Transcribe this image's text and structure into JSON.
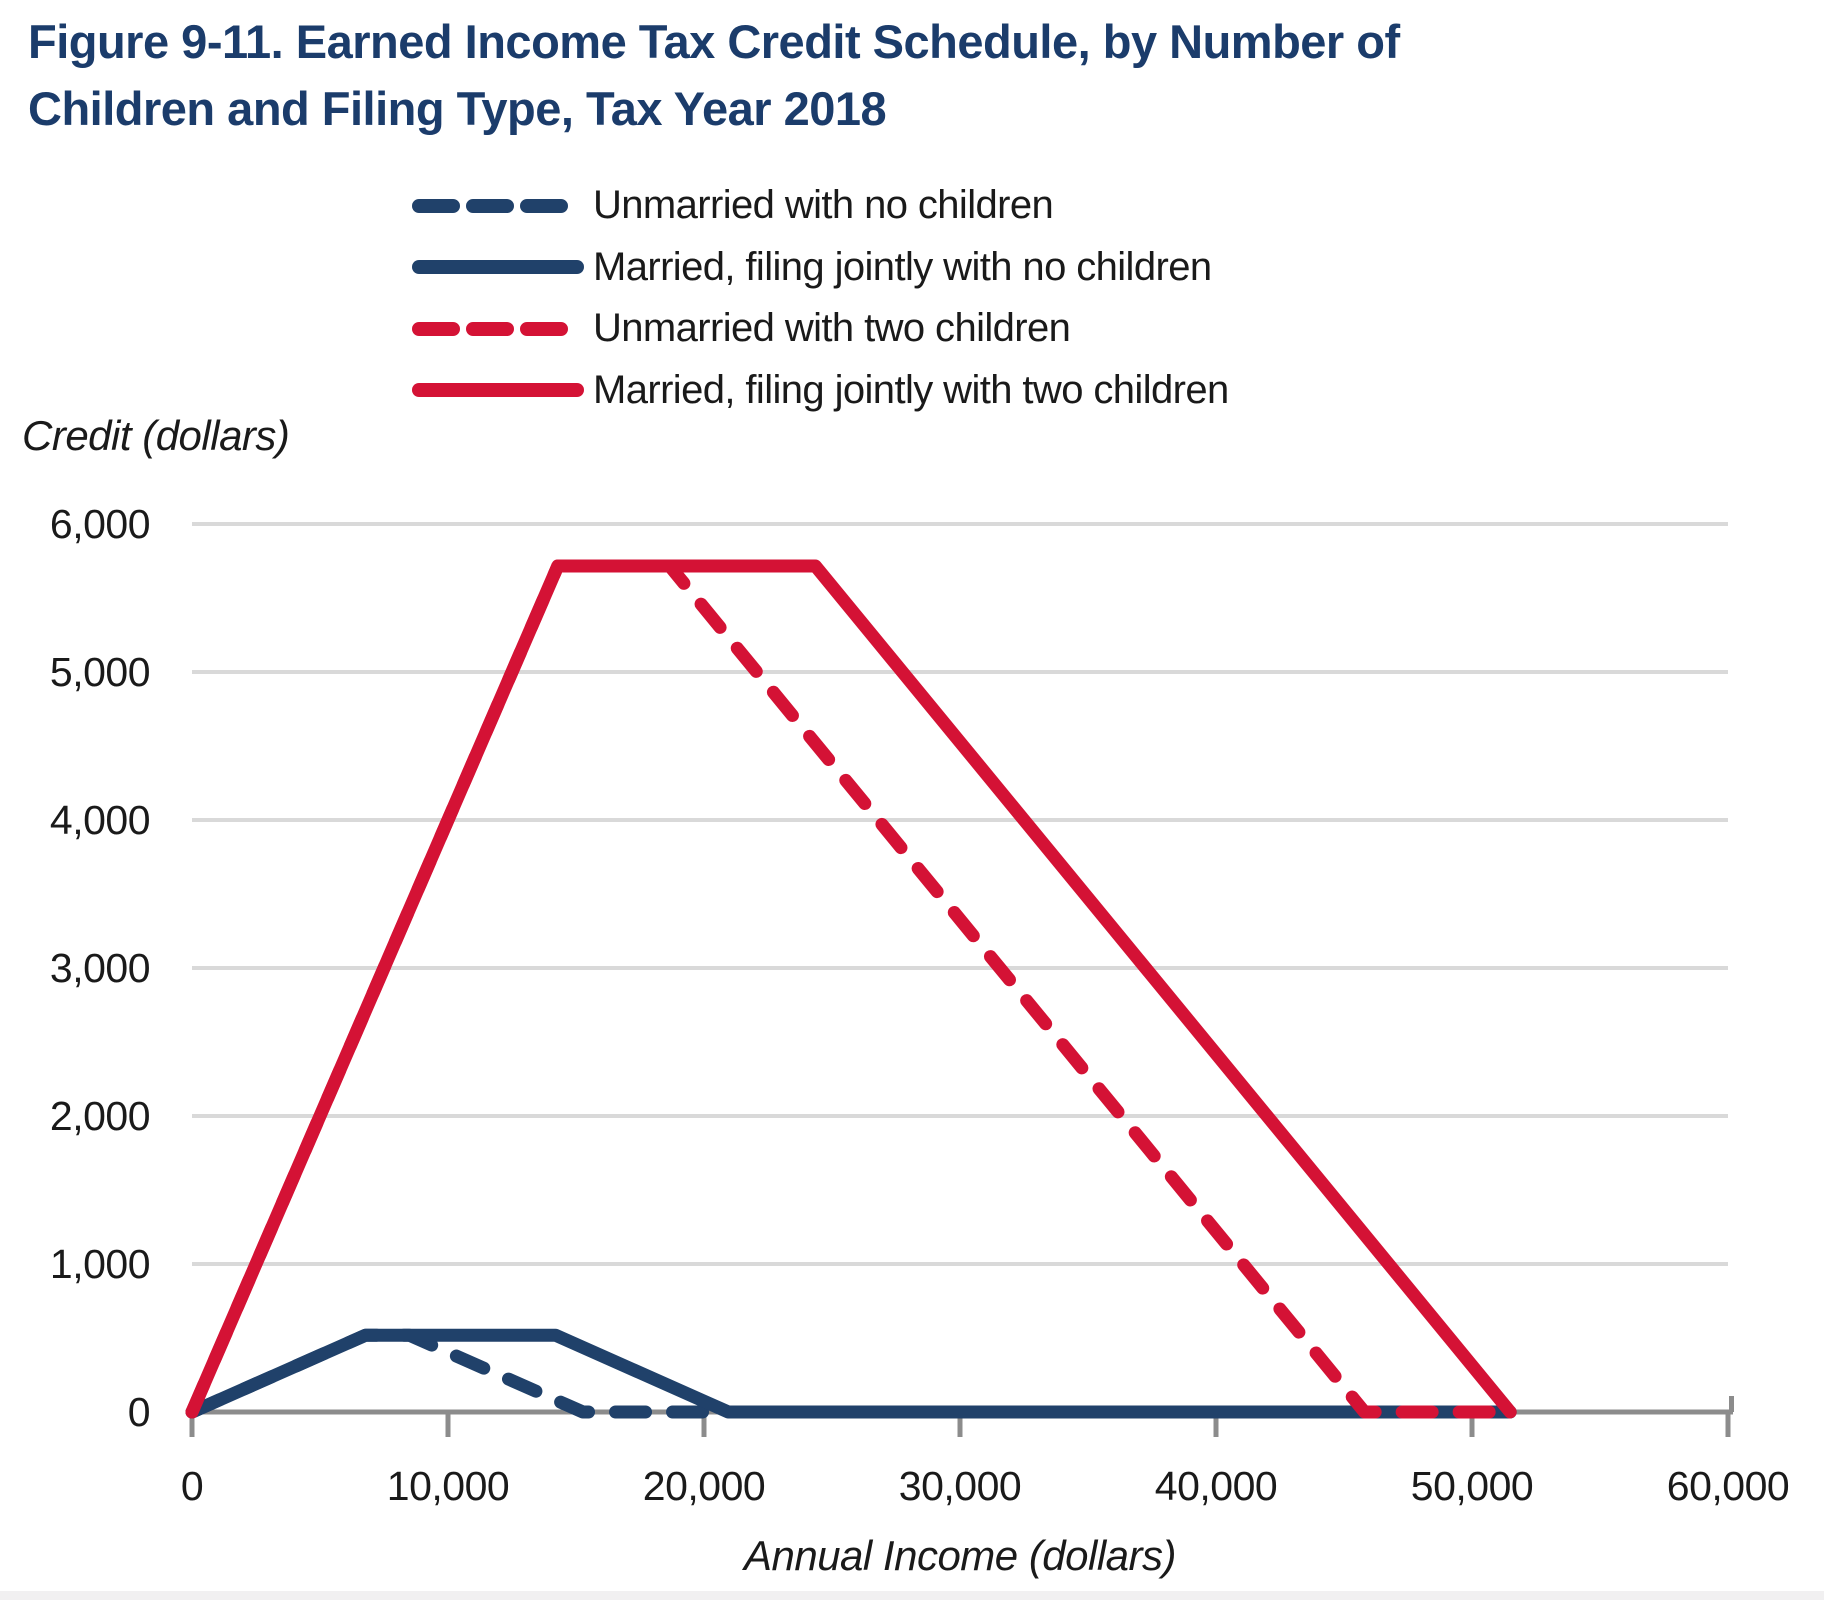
{
  "title": "Figure 9-11. Earned Income Tax Credit Schedule, by Number of Children and Filing Type, Tax Year 2018",
  "colors": {
    "title_navy": "#1b3c6b",
    "navy_line": "#20416a",
    "red_line": "#d41235",
    "text": "#1a1a1a",
    "gridline": "#d9d9d9",
    "axis": "#8c8c8c"
  },
  "legend": {
    "items": [
      {
        "label": "Unmarried with no children",
        "color": "#20416a",
        "dash": true
      },
      {
        "label": "Married, filing jointly with no children",
        "color": "#20416a",
        "dash": false
      },
      {
        "label": "Unmarried with two children",
        "color": "#d41235",
        "dash": true
      },
      {
        "label": "Married, filing jointly with two children",
        "color": "#d41235",
        "dash": false
      }
    ]
  },
  "chart_data": {
    "type": "line",
    "title": "Earned Income Tax Credit Schedule, by Number of Children and Filing Type, Tax Year 2018",
    "xlabel": "Annual Income (dollars)",
    "ylabel": "Credit (dollars)",
    "xlim": [
      0,
      60000
    ],
    "ylim": [
      0,
      6000
    ],
    "grid": "horizontal gridlines at each 1,000 of credit",
    "legend_position": "top",
    "x_ticks": [
      {
        "value": 0,
        "label": "0"
      },
      {
        "value": 10000,
        "label": "10,000"
      },
      {
        "value": 20000,
        "label": "20,000"
      },
      {
        "value": 30000,
        "label": "30,000"
      },
      {
        "value": 40000,
        "label": "40,000"
      },
      {
        "value": 50000,
        "label": "50,000"
      },
      {
        "value": 60000,
        "label": "60,000"
      }
    ],
    "y_ticks": [
      {
        "value": 0,
        "label": "0"
      },
      {
        "value": 1000,
        "label": "1,000"
      },
      {
        "value": 2000,
        "label": "2,000"
      },
      {
        "value": 3000,
        "label": "3,000"
      },
      {
        "value": 4000,
        "label": "4,000"
      },
      {
        "value": 5000,
        "label": "5,000"
      },
      {
        "value": 6000,
        "label": "6,000"
      }
    ],
    "series": [
      {
        "name": "Unmarried with no children",
        "color": "#20416a",
        "dash": true,
        "points": [
          [
            0,
            0
          ],
          [
            6780,
            519
          ],
          [
            8490,
            519
          ],
          [
            15270,
            0
          ],
          [
            51492,
            0
          ]
        ]
      },
      {
        "name": "Married, filing jointly with no children",
        "color": "#20416a",
        "dash": false,
        "points": [
          [
            0,
            0
          ],
          [
            6780,
            519
          ],
          [
            14200,
            519
          ],
          [
            20950,
            0
          ],
          [
            51492,
            0
          ]
        ]
      },
      {
        "name": "Unmarried with two children",
        "color": "#d41235",
        "dash": true,
        "points": [
          [
            0,
            0
          ],
          [
            14290,
            5716
          ],
          [
            18660,
            5716
          ],
          [
            45802,
            0
          ],
          [
            51492,
            0
          ]
        ]
      },
      {
        "name": "Married, filing jointly with two children",
        "color": "#d41235",
        "dash": false,
        "points": [
          [
            0,
            0
          ],
          [
            14290,
            5716
          ],
          [
            24350,
            5716
          ],
          [
            51492,
            0
          ]
        ]
      }
    ]
  }
}
